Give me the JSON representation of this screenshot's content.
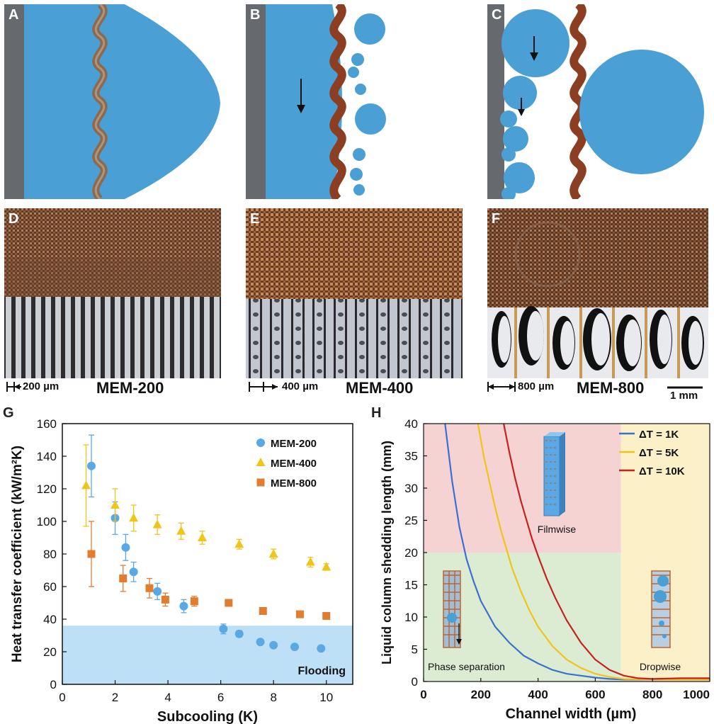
{
  "panels": {
    "a": "A",
    "b": "B",
    "c": "C",
    "d": "D",
    "e": "E",
    "f": "F",
    "g": "G",
    "h": "H"
  },
  "colors": {
    "droplet": "#4a9fd5",
    "wall": "#666a6e",
    "copper": "#8b3e22",
    "mesh_a": "#8a6a52",
    "filmwise_region": "#f6d3d3",
    "phase_sep_region": "#dcecd3",
    "dropwise_region": "#fbf0c8",
    "flooding_region": "#bde0f7"
  },
  "photos": {
    "d": {
      "label": "MEM-200",
      "scale": "200 µm"
    },
    "e": {
      "label": "MEM-400",
      "scale": "400 µm"
    },
    "f": {
      "label": "MEM-800",
      "scale": "800 µm",
      "scale_bar": "1 mm"
    }
  },
  "chart_data": [
    {
      "id": "G",
      "type": "scatter",
      "xlabel": "Subcooling (K)",
      "ylabel": "Heat transfer coefficient (kW/m²K)",
      "xlim": [
        0,
        11
      ],
      "ylim": [
        0,
        160
      ],
      "xticks": [
        "0",
        "2",
        "4",
        "6",
        "8",
        "10"
      ],
      "yticks": [
        "0",
        "20",
        "40",
        "60",
        "80",
        "100",
        "120",
        "140",
        "160"
      ],
      "legend_position": "top-right",
      "annotation": "Flooding",
      "flooding_below": 36,
      "series": [
        {
          "name": "MEM-200",
          "marker": "circle",
          "color": "#5aa9e6",
          "x": [
            1.1,
            2.0,
            2.4,
            2.7,
            3.6,
            4.6,
            6.1,
            6.7,
            7.5,
            8.0,
            8.8,
            9.8
          ],
          "y": [
            134,
            102,
            84,
            69,
            57,
            48,
            34,
            31,
            26,
            24,
            23,
            22
          ],
          "err": [
            19,
            10,
            8,
            6,
            5,
            4,
            3,
            2,
            0,
            0,
            0,
            0
          ]
        },
        {
          "name": "MEM-400",
          "marker": "triangle",
          "color": "#f0c419",
          "x": [
            0.9,
            2.0,
            2.7,
            3.6,
            4.5,
            5.3,
            6.7,
            8.0,
            9.4,
            10.0
          ],
          "y": [
            122,
            110,
            102,
            98,
            94,
            90,
            86,
            80,
            75,
            72
          ],
          "err": [
            25,
            10,
            8,
            6,
            5,
            4,
            3,
            3,
            3,
            2
          ]
        },
        {
          "name": "MEM-800",
          "marker": "square",
          "color": "#e27c2f",
          "x": [
            1.1,
            2.3,
            3.3,
            3.9,
            5.0,
            6.3,
            7.6,
            9.0,
            10.0
          ],
          "y": [
            80,
            65,
            59,
            52,
            51,
            50,
            45,
            43,
            42
          ],
          "err": [
            20,
            8,
            6,
            4,
            3,
            2,
            0,
            0,
            0
          ]
        }
      ]
    },
    {
      "id": "H",
      "type": "line",
      "xlabel": "Channel width (µm)",
      "ylabel": "Liquid column shedding length (mm)",
      "xlim": [
        0,
        1000
      ],
      "ylim": [
        0,
        40
      ],
      "xticks": [
        "0",
        "200",
        "400",
        "600",
        "800",
        "1000"
      ],
      "yticks": [
        "0",
        "5",
        "10",
        "15",
        "20",
        "25",
        "30",
        "35",
        "40"
      ],
      "legend_position": "top-right",
      "region_boundary_x": 690,
      "region_boundary_y": 20,
      "regions": [
        "Filmwise",
        "Phase separation",
        "Dropwise"
      ],
      "series": [
        {
          "name": "ΔT = 1K",
          "color": "#3b6fd0",
          "x": [
            75,
            100,
            125,
            150,
            175,
            200,
            250,
            300,
            350,
            400,
            450,
            500,
            550,
            600,
            650,
            700,
            800,
            900,
            1000
          ],
          "y": [
            40,
            31,
            24,
            19,
            15.5,
            12.5,
            8.5,
            6,
            4,
            2.8,
            1.8,
            1.2,
            0.9,
            0.6,
            0.4,
            0.3,
            0.3,
            0.3,
            0.3
          ]
        },
        {
          "name": "ΔT = 5K",
          "color": "#f0c419",
          "x": [
            190,
            210,
            230,
            250,
            270,
            290,
            310,
            340,
            370,
            400,
            450,
            500,
            550,
            600,
            650,
            700,
            800,
            900,
            1000
          ],
          "y": [
            40,
            35,
            31,
            27,
            23.5,
            20.5,
            17.5,
            14,
            11,
            8.5,
            5.5,
            3.4,
            2.1,
            1.2,
            0.7,
            0.4,
            0.3,
            0.3,
            0.3
          ]
        },
        {
          "name": "ΔT = 10K",
          "color": "#c6201f",
          "x": [
            280,
            300,
            320,
            340,
            360,
            380,
            400,
            430,
            460,
            500,
            550,
            600,
            650,
            700,
            750,
            800,
            900,
            1000
          ],
          "y": [
            40,
            35.5,
            31.5,
            28,
            25,
            22,
            19.5,
            16,
            13,
            9.5,
            6,
            3.4,
            1.8,
            0.9,
            0.5,
            0.4,
            0.5,
            0.5
          ]
        }
      ]
    }
  ]
}
